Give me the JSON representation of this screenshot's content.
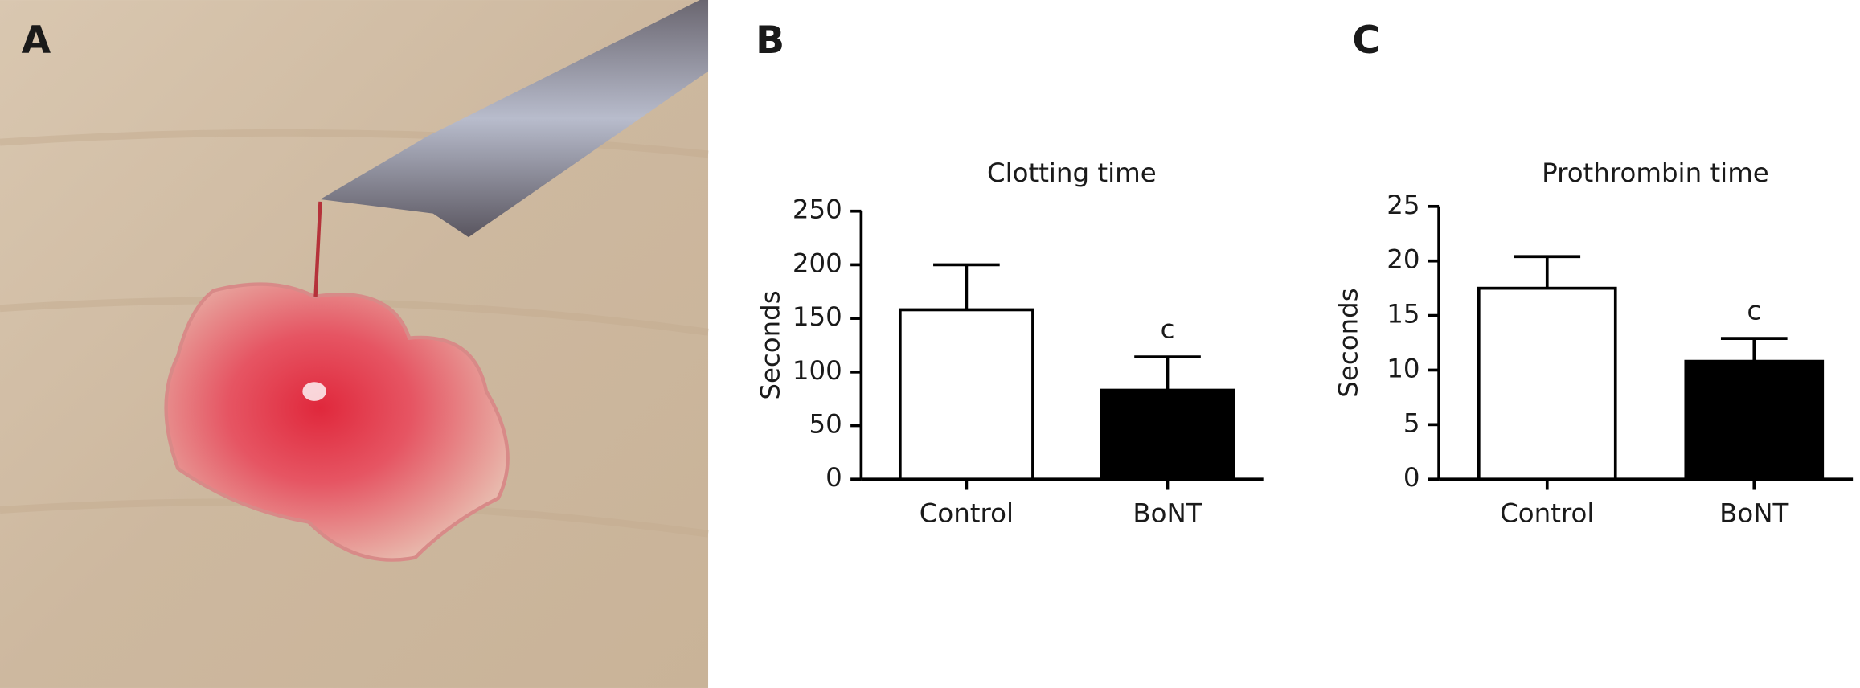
{
  "panels": [
    "A",
    "B",
    "C"
  ],
  "chart_data": [
    {
      "type": "bar",
      "title": "Clotting time",
      "ylabel": "Seconds",
      "categories": [
        "Control",
        "BoNT"
      ],
      "values": [
        158,
        83
      ],
      "errors": [
        42,
        31
      ],
      "colors": [
        "#ffffff",
        "#000000"
      ],
      "annotations": [
        null,
        "c"
      ],
      "ylim": [
        0,
        250
      ],
      "yticks": [
        0,
        50,
        100,
        150,
        200,
        250
      ]
    },
    {
      "type": "bar",
      "title": "Prothrombin time",
      "ylabel": "Seconds",
      "categories": [
        "Control",
        "BoNT"
      ],
      "values": [
        17.5,
        10.8
      ],
      "errors": [
        2.9,
        2.1
      ],
      "colors": [
        "#ffffff",
        "#000000"
      ],
      "annotations": [
        null,
        "c"
      ],
      "ylim": [
        0,
        25
      ],
      "yticks": [
        0,
        5,
        10,
        15,
        20,
        25
      ]
    }
  ]
}
